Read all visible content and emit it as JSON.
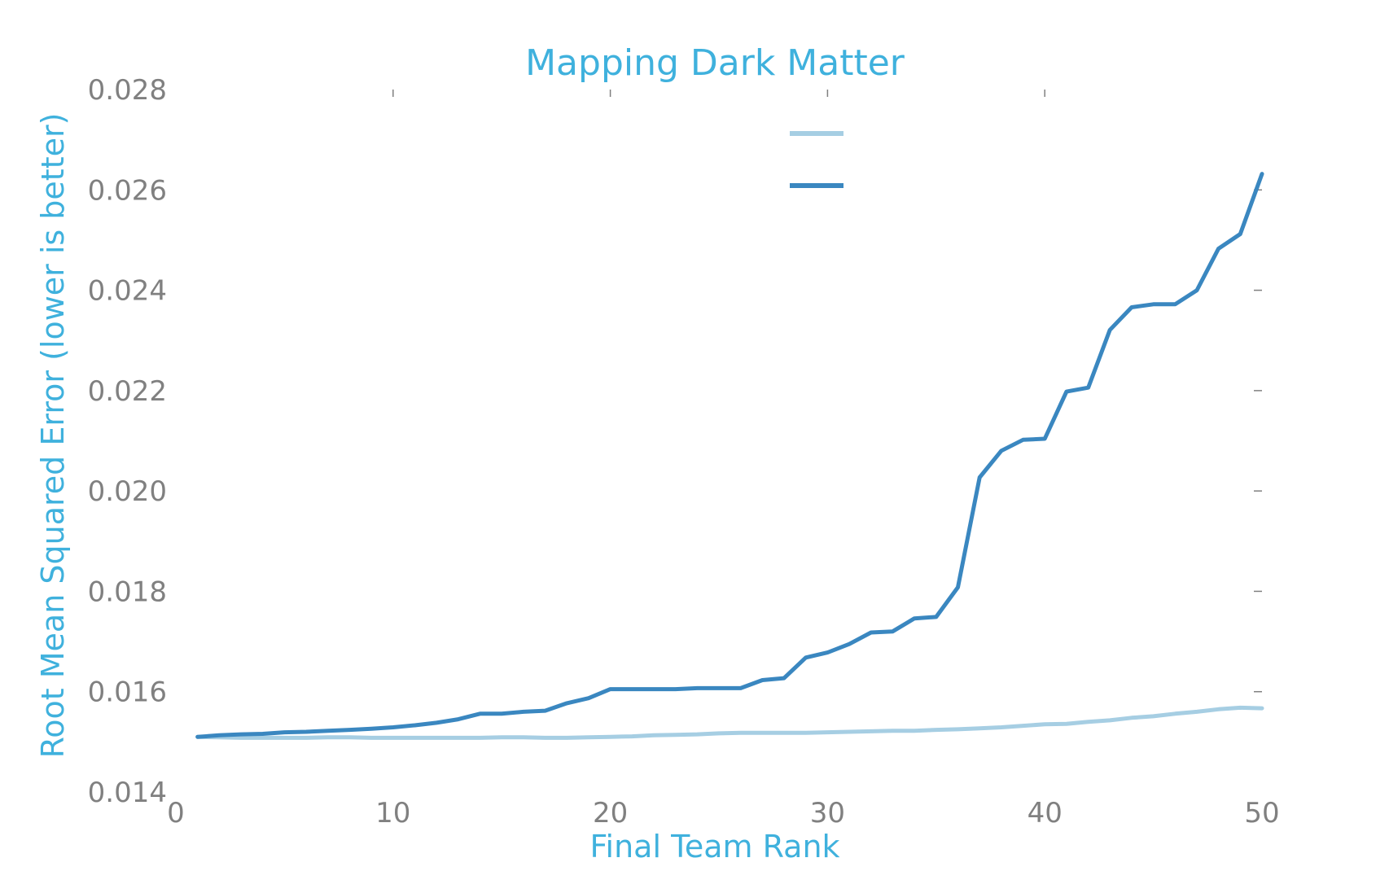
{
  "chart_data": {
    "type": "line",
    "title": "Mapping Dark Matter",
    "xlabel": "Final Team Rank",
    "ylabel": "Root Mean Squared Error (lower is better)",
    "xlim": [
      0,
      50
    ],
    "ylim": [
      0.014,
      0.028
    ],
    "x_ticks": [
      {
        "value": 0,
        "label": "0"
      },
      {
        "value": 10,
        "label": "10"
      },
      {
        "value": 20,
        "label": "20"
      },
      {
        "value": 30,
        "label": "30"
      },
      {
        "value": 40,
        "label": "40"
      },
      {
        "value": 50,
        "label": "50"
      }
    ],
    "y_ticks": [
      {
        "value": 0.014,
        "label": "0.014"
      },
      {
        "value": 0.016,
        "label": "0.016"
      },
      {
        "value": 0.018,
        "label": "0.018"
      },
      {
        "value": 0.02,
        "label": "0.020"
      },
      {
        "value": 0.022,
        "label": "0.022"
      },
      {
        "value": 0.024,
        "label": "0.024"
      },
      {
        "value": 0.026,
        "label": "0.026"
      },
      {
        "value": 0.028,
        "label": "0.028"
      }
    ],
    "grid": false,
    "legend": "top-center",
    "colors": {
      "title": "#3fb1dd",
      "axis_label": "#3fb1dd",
      "tick_label": "#808080",
      "tick_mark": "#808080"
    },
    "x": [
      1,
      2,
      3,
      4,
      5,
      6,
      7,
      8,
      9,
      10,
      11,
      12,
      13,
      14,
      15,
      16,
      17,
      18,
      19,
      20,
      21,
      22,
      23,
      24,
      25,
      26,
      27,
      28,
      29,
      30,
      31,
      32,
      33,
      34,
      35,
      36,
      37,
      38,
      39,
      40,
      41,
      42,
      43,
      44,
      45,
      46,
      47,
      48,
      49,
      50
    ],
    "series": [
      {
        "color": "#a6cee3",
        "values": [
          0.0151,
          0.01509,
          0.01508,
          0.01508,
          0.01508,
          0.01508,
          0.01509,
          0.01509,
          0.01508,
          0.01508,
          0.01508,
          0.01508,
          0.01508,
          0.01508,
          0.01509,
          0.01509,
          0.01508,
          0.01508,
          0.01509,
          0.0151,
          0.01511,
          0.01513,
          0.01514,
          0.01515,
          0.01517,
          0.01518,
          0.01518,
          0.01518,
          0.01518,
          0.01519,
          0.0152,
          0.01521,
          0.01522,
          0.01522,
          0.01524,
          0.01525,
          0.01527,
          0.01529,
          0.01532,
          0.01535,
          0.01536,
          0.0154,
          0.01543,
          0.01548,
          0.01551,
          0.01556,
          0.0156,
          0.01565,
          0.01568,
          0.01567
        ]
      },
      {
        "color": "#3a87c0",
        "values": [
          0.0151,
          0.01513,
          0.01515,
          0.01516,
          0.01519,
          0.0152,
          0.01522,
          0.01524,
          0.01526,
          0.01529,
          0.01533,
          0.01538,
          0.01545,
          0.01556,
          0.01556,
          0.0156,
          0.01562,
          0.01577,
          0.01587,
          0.01605,
          0.01605,
          0.01605,
          0.01605,
          0.01607,
          0.01607,
          0.01607,
          0.01623,
          0.01627,
          0.01668,
          0.01678,
          0.01695,
          0.01718,
          0.0172,
          0.01746,
          0.01749,
          0.01808,
          0.02027,
          0.0208,
          0.02102,
          0.02104,
          0.02198,
          0.02206,
          0.02321,
          0.02366,
          0.02372,
          0.02372,
          0.024,
          0.02483,
          0.02512,
          0.02632
        ]
      }
    ]
  }
}
